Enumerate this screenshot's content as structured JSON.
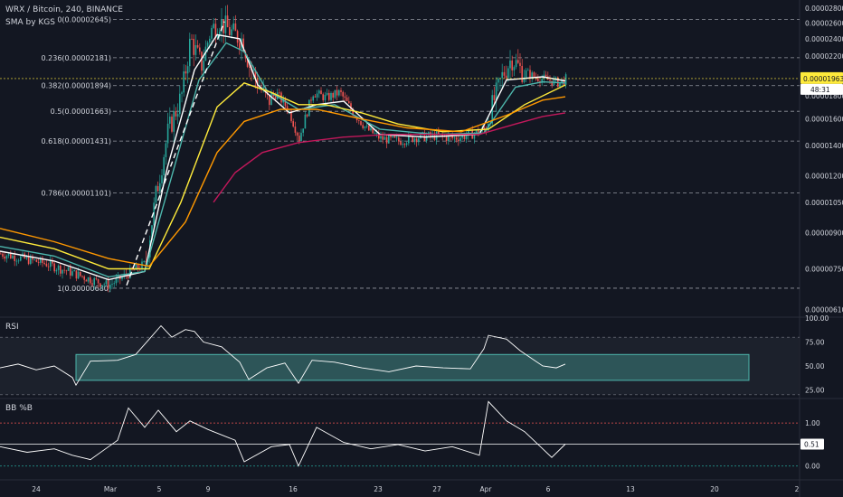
{
  "header": {
    "symbol_line": "WRX / Bitcoin, 240, BINANCE",
    "indicator": "SMA by KGS"
  },
  "panes": {
    "rsi_title": "RSI",
    "bb_title": "BB %B"
  },
  "colors": {
    "background": "#131722",
    "up_candle": "#26a69a",
    "down_candle": "#ef5350",
    "sma_fast": "#ffffff",
    "sma_2": "#4db6ac",
    "sma_3": "#ffeb3b",
    "sma_4": "#ff9800",
    "sma_5": "#c2185b",
    "rsi_band": "#4db6ac",
    "grid": "#2a2e39"
  },
  "chart_data": [
    {
      "type": "candlestick",
      "title": "WRX / Bitcoin, 240, BINANCE",
      "x_ticks": [
        "24",
        "Mar",
        "5",
        "9",
        "16",
        "23",
        "27",
        "Apr",
        "6",
        "13",
        "20",
        "2"
      ],
      "y_ticks": [
        "0.00002800",
        "0.00002600",
        "0.00002400",
        "0.00002200",
        "0.00002000",
        "0.00001800",
        "0.00001600",
        "0.00001400",
        "0.00001200",
        "0.00001050",
        "0.00000900",
        "0.00000750",
        "0.00000610"
      ],
      "y_scale": "log",
      "ylim": [
        5.9e-06,
        2.92e-05
      ],
      "current_price": "0.00001963",
      "countdown": "48:31",
      "fibonacci_levels": [
        {
          "label": "0(0.00002645)",
          "value": 2.645e-05
        },
        {
          "label": "0.236(0.00002181)",
          "value": 2.181e-05
        },
        {
          "label": "0.382(0.00001894)",
          "value": 1.894e-05
        },
        {
          "label": "0.5(0.00001663)",
          "value": 1.663e-05
        },
        {
          "label": "0.618(0.00001431)",
          "value": 1.431e-05
        },
        {
          "label": "0.786(0.00001101)",
          "value": 1.101e-05
        },
        {
          "label": "1(0.00000680)",
          "value": 6.8e-06
        }
      ],
      "price_path": [
        [
          0,
          8.1e-06
        ],
        [
          25,
          7.9e-06
        ],
        [
          50,
          7.7e-06
        ],
        [
          75,
          7.4e-06
        ],
        [
          100,
          7.1e-06
        ],
        [
          120,
          6.9e-06
        ],
        [
          140,
          7.3e-06
        ],
        [
          160,
          7.7e-06
        ],
        [
          172,
          1.1e-05
        ],
        [
          185,
          1.5e-05
        ],
        [
          200,
          1.8e-05
        ],
        [
          210,
          2.4e-05
        ],
        [
          222,
          2.1e-05
        ],
        [
          232,
          2.5e-05
        ],
        [
          242,
          2.62e-05
        ],
        [
          255,
          2.48e-05
        ],
        [
          268,
          2.38e-05
        ],
        [
          275,
          2.1e-05
        ],
        [
          285,
          1.9e-05
        ],
        [
          295,
          1.75e-05
        ],
        [
          305,
          1.82e-05
        ],
        [
          318,
          1.68e-05
        ],
        [
          330,
          1.45e-05
        ],
        [
          345,
          1.83e-05
        ],
        [
          360,
          1.78e-05
        ],
        [
          375,
          1.83e-05
        ],
        [
          390,
          1.65e-05
        ],
        [
          405,
          1.52e-05
        ],
        [
          420,
          1.45e-05
        ],
        [
          440,
          1.43e-05
        ],
        [
          460,
          1.46e-05
        ],
        [
          480,
          1.47e-05
        ],
        [
          500,
          1.45e-05
        ],
        [
          520,
          1.48e-05
        ],
        [
          535,
          1.52e-05
        ],
        [
          545,
          1.75e-05
        ],
        [
          555,
          2e-05
        ],
        [
          565,
          2.18e-05
        ],
        [
          575,
          2.05e-05
        ],
        [
          590,
          1.98e-05
        ],
        [
          605,
          1.95e-05
        ],
        [
          618,
          1.92e-05
        ],
        [
          625,
          1.96e-05
        ]
      ],
      "series": [
        {
          "name": "SMA 1",
          "color": "#ffffff",
          "points": [
            [
              0,
              8.2e-06
            ],
            [
              60,
              7.8e-06
            ],
            [
              120,
              7.1e-06
            ],
            [
              160,
              7.4e-06
            ],
            [
              185,
              1.25e-05
            ],
            [
              215,
              2.05e-05
            ],
            [
              240,
              2.45e-05
            ],
            [
              265,
              2.4e-05
            ],
            [
              285,
              1.9e-05
            ],
            [
              320,
              1.65e-05
            ],
            [
              350,
              1.72e-05
            ],
            [
              380,
              1.75e-05
            ],
            [
              420,
              1.48e-05
            ],
            [
              470,
              1.46e-05
            ],
            [
              530,
              1.48e-05
            ],
            [
              560,
              1.95e-05
            ],
            [
              600,
              1.98e-05
            ],
            [
              625,
              1.94e-05
            ]
          ]
        },
        {
          "name": "SMA 2",
          "color": "#4db6ac",
          "points": [
            [
              0,
              8.4e-06
            ],
            [
              60,
              8e-06
            ],
            [
              120,
              7.2e-06
            ],
            [
              160,
              7.4e-06
            ],
            [
              190,
              1.2e-05
            ],
            [
              220,
              1.95e-05
            ],
            [
              250,
              2.35e-05
            ],
            [
              270,
              2.25e-05
            ],
            [
              295,
              1.85e-05
            ],
            [
              330,
              1.68e-05
            ],
            [
              370,
              1.72e-05
            ],
            [
              420,
              1.52e-05
            ],
            [
              480,
              1.48e-05
            ],
            [
              535,
              1.49e-05
            ],
            [
              570,
              1.88e-05
            ],
            [
              600,
              1.93e-05
            ],
            [
              625,
              1.92e-05
            ]
          ]
        },
        {
          "name": "SMA 3",
          "color": "#ffeb3b",
          "points": [
            [
              0,
              8.8e-06
            ],
            [
              60,
              8.3e-06
            ],
            [
              120,
              7.5e-06
            ],
            [
              165,
              7.5e-06
            ],
            [
              200,
              1.05e-05
            ],
            [
              240,
              1.7e-05
            ],
            [
              270,
              1.92e-05
            ],
            [
              300,
              1.83e-05
            ],
            [
              330,
              1.72e-05
            ],
            [
              360,
              1.72e-05
            ],
            [
              400,
              1.65e-05
            ],
            [
              440,
              1.56e-05
            ],
            [
              490,
              1.5e-05
            ],
            [
              540,
              1.52e-05
            ],
            [
              580,
              1.72e-05
            ],
            [
              625,
              1.9e-05
            ]
          ]
        },
        {
          "name": "SMA 4",
          "color": "#ff9800",
          "points": [
            [
              0,
              9.2e-06
            ],
            [
              60,
              8.6e-06
            ],
            [
              120,
              7.9e-06
            ],
            [
              165,
              7.6e-06
            ],
            [
              205,
              9.5e-06
            ],
            [
              240,
              1.35e-05
            ],
            [
              270,
              1.58e-05
            ],
            [
              310,
              1.68e-05
            ],
            [
              350,
              1.68e-05
            ],
            [
              400,
              1.6e-05
            ],
            [
              450,
              1.53e-05
            ],
            [
              510,
              1.5e-05
            ],
            [
              560,
              1.63e-05
            ],
            [
              600,
              1.76e-05
            ],
            [
              625,
              1.79e-05
            ]
          ]
        },
        {
          "name": "SMA 5",
          "color": "#c2185b",
          "points": [
            [
              236,
              1.05e-05
            ],
            [
              260,
              1.22e-05
            ],
            [
              290,
              1.35e-05
            ],
            [
              330,
              1.42e-05
            ],
            [
              380,
              1.46e-05
            ],
            [
              430,
              1.48e-05
            ],
            [
              480,
              1.48e-05
            ],
            [
              530,
              1.48e-05
            ],
            [
              570,
              1.56e-05
            ],
            [
              600,
              1.62e-05
            ],
            [
              625,
              1.65e-05
            ]
          ]
        }
      ]
    },
    {
      "type": "line",
      "title": "RSI",
      "y_ticks": [
        "100.00",
        "75.00",
        "50.00",
        "25.00"
      ],
      "ylim": [
        17,
        100
      ],
      "band": [
        35,
        62
      ],
      "levels": [
        80,
        20
      ],
      "points": [
        [
          0,
          48
        ],
        [
          20,
          52
        ],
        [
          40,
          46
        ],
        [
          60,
          50
        ],
        [
          80,
          38
        ],
        [
          84,
          30
        ],
        [
          100,
          55
        ],
        [
          130,
          56
        ],
        [
          150,
          62
        ],
        [
          165,
          78
        ],
        [
          178,
          92
        ],
        [
          190,
          80
        ],
        [
          205,
          88
        ],
        [
          215,
          86
        ],
        [
          225,
          75
        ],
        [
          245,
          70
        ],
        [
          265,
          54
        ],
        [
          275,
          36
        ],
        [
          295,
          48
        ],
        [
          315,
          53
        ],
        [
          330,
          32
        ],
        [
          345,
          56
        ],
        [
          370,
          54
        ],
        [
          400,
          48
        ],
        [
          430,
          44
        ],
        [
          460,
          50
        ],
        [
          490,
          48
        ],
        [
          520,
          47
        ],
        [
          535,
          68
        ],
        [
          540,
          82
        ],
        [
          560,
          78
        ],
        [
          575,
          66
        ],
        [
          600,
          50
        ],
        [
          615,
          48
        ],
        [
          625,
          52
        ]
      ]
    },
    {
      "type": "line",
      "title": "BB %B",
      "y_ticks": [
        "1.00",
        "0.51",
        "0.00"
      ],
      "ylim": [
        -0.3,
        1.55
      ],
      "levels": [
        1.0,
        0.0
      ],
      "current_value": "0.51",
      "points": [
        [
          0,
          0.45
        ],
        [
          30,
          0.32
        ],
        [
          60,
          0.4
        ],
        [
          80,
          0.25
        ],
        [
          100,
          0.15
        ],
        [
          130,
          0.6
        ],
        [
          142,
          1.35
        ],
        [
          160,
          0.9
        ],
        [
          175,
          1.3
        ],
        [
          195,
          0.8
        ],
        [
          210,
          1.05
        ],
        [
          230,
          0.85
        ],
        [
          260,
          0.6
        ],
        [
          270,
          0.1
        ],
        [
          300,
          0.45
        ],
        [
          320,
          0.5
        ],
        [
          330,
          0.0
        ],
        [
          350,
          0.9
        ],
        [
          380,
          0.55
        ],
        [
          410,
          0.4
        ],
        [
          440,
          0.5
        ],
        [
          470,
          0.35
        ],
        [
          500,
          0.45
        ],
        [
          530,
          0.25
        ],
        [
          540,
          1.5
        ],
        [
          560,
          1.05
        ],
        [
          580,
          0.8
        ],
        [
          600,
          0.4
        ],
        [
          610,
          0.2
        ],
        [
          625,
          0.51
        ]
      ]
    }
  ]
}
